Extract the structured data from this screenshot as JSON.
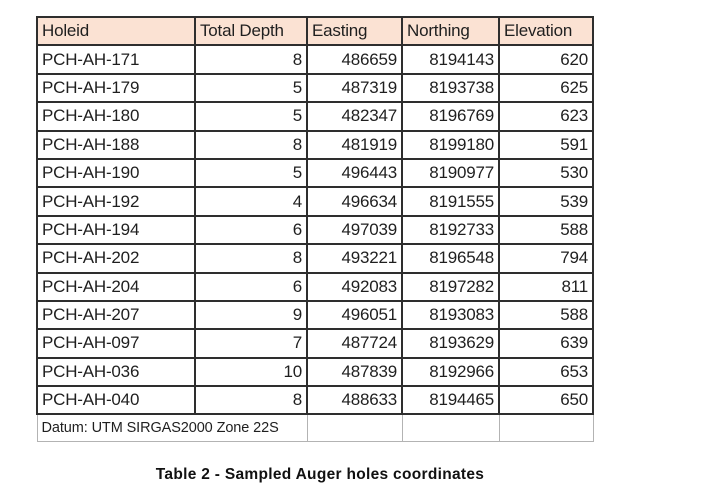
{
  "page": {
    "background": "#ffffff"
  },
  "table": {
    "columns": [
      "Holeid",
      "Total Depth",
      "Easting",
      "Northing",
      "Elevation"
    ],
    "rows": [
      [
        "PCH-AH-171",
        "8",
        "486659",
        "8194143",
        "620"
      ],
      [
        "PCH-AH-179",
        "5",
        "487319",
        "8193738",
        "625"
      ],
      [
        "PCH-AH-180",
        "5",
        "482347",
        "8196769",
        "623"
      ],
      [
        "PCH-AH-188",
        "8",
        "481919",
        "8199180",
        "591"
      ],
      [
        "PCH-AH-190",
        "5",
        "496443",
        "8190977",
        "530"
      ],
      [
        "PCH-AH-192",
        "4",
        "496634",
        "8191555",
        "539"
      ],
      [
        "PCH-AH-194",
        "6",
        "497039",
        "8192733",
        "588"
      ],
      [
        "PCH-AH-202",
        "8",
        "493221",
        "8196548",
        "794"
      ],
      [
        "PCH-AH-204",
        "6",
        "492083",
        "8197282",
        "811"
      ],
      [
        "PCH-AH-207",
        "9",
        "496051",
        "8193083",
        "588"
      ],
      [
        "PCH-AH-097",
        "7",
        "487724",
        "8193629",
        "639"
      ],
      [
        "PCH-AH-036",
        "10",
        "487839",
        "8192966",
        "653"
      ],
      [
        "PCH-AH-040",
        "8",
        "488633",
        "8194465",
        "650"
      ]
    ],
    "footer_note": "Datum: UTM SIRGAS2000 Zone 22S",
    "colors": {
      "header_fill": "#fbe2d3",
      "grid_border": "#2e2e2e",
      "note_border": "#b3b3b3",
      "text": "#1f1f1f"
    }
  },
  "caption": "Table 2 - Sampled Auger holes coordinates"
}
